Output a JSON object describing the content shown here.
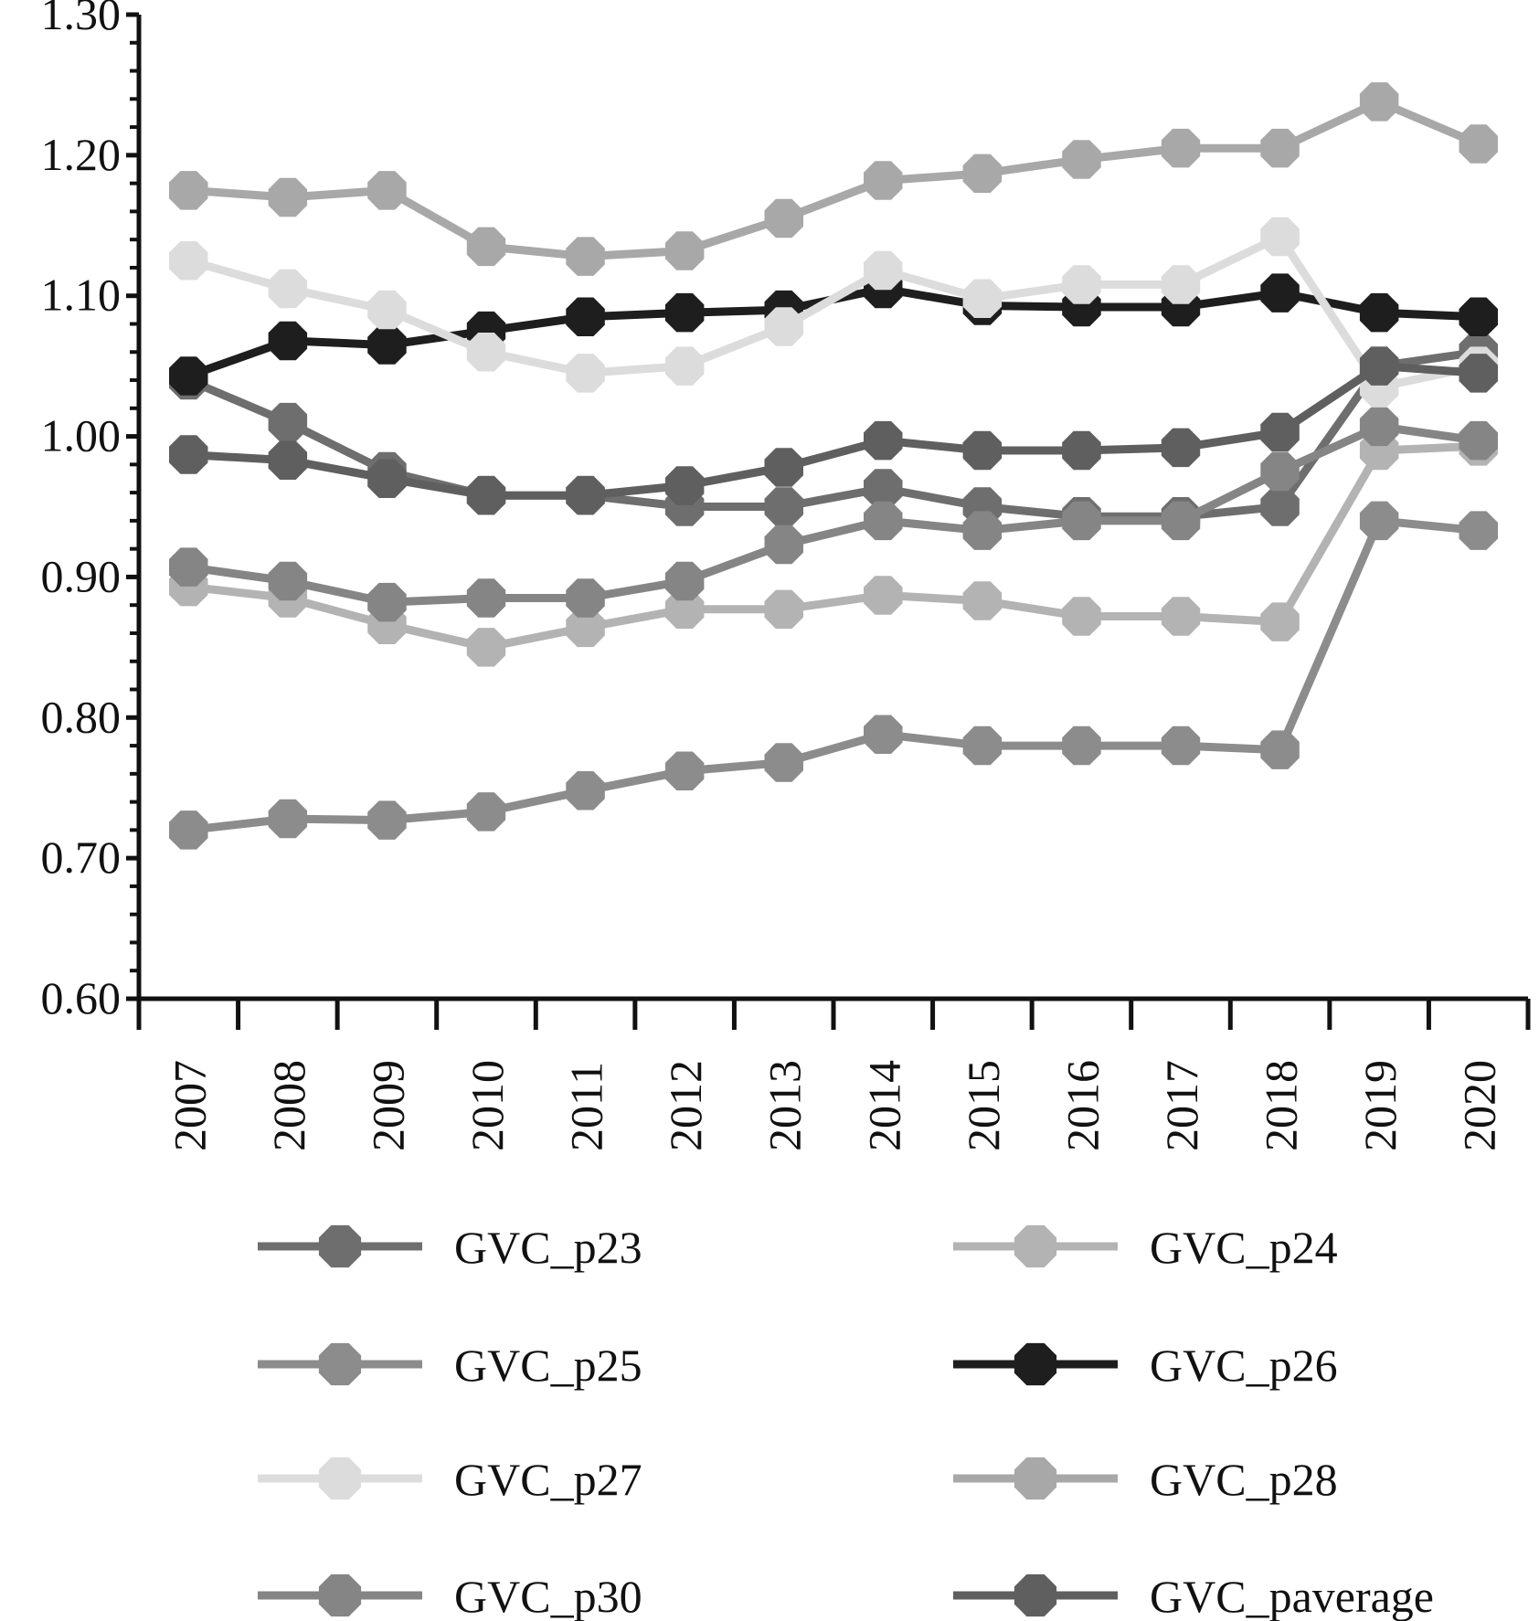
{
  "chart_data": {
    "type": "line",
    "title": "",
    "xlabel": "",
    "ylabel": "",
    "categories": [
      "2007",
      "2008",
      "2009",
      "2010",
      "2011",
      "2012",
      "2013",
      "2014",
      "2015",
      "2016",
      "2017",
      "2018",
      "2019",
      "2020"
    ],
    "ylim": [
      0.6,
      1.3
    ],
    "yticks": [
      "0.60",
      "0.70",
      "0.80",
      "0.90",
      "1.00",
      "1.10",
      "1.20",
      "1.30"
    ],
    "legend_position": "bottom",
    "grid": false,
    "series": [
      {
        "name": "GVC_p23",
        "color": "#6e6e6e",
        "values": [
          1.04,
          1.01,
          0.975,
          0.958,
          0.958,
          0.95,
          0.95,
          0.963,
          0.95,
          0.943,
          0.943,
          0.95,
          1.05,
          1.06
        ]
      },
      {
        "name": "GVC_p24",
        "color": "#b3b3b3",
        "values": [
          0.893,
          0.885,
          0.866,
          0.85,
          0.864,
          0.877,
          0.877,
          0.887,
          0.883,
          0.872,
          0.872,
          0.868,
          0.99,
          0.993
        ]
      },
      {
        "name": "GVC_p25",
        "color": "#8c8c8c",
        "values": [
          0.72,
          0.728,
          0.727,
          0.733,
          0.748,
          0.762,
          0.768,
          0.788,
          0.78,
          0.78,
          0.78,
          0.777,
          0.94,
          0.933
        ]
      },
      {
        "name": "GVC_p26",
        "color": "#1e1e1e",
        "values": [
          1.043,
          1.068,
          1.065,
          1.075,
          1.085,
          1.088,
          1.09,
          1.105,
          1.093,
          1.092,
          1.092,
          1.102,
          1.088,
          1.085
        ]
      },
      {
        "name": "GVC_p27",
        "color": "#dcdcdc",
        "values": [
          1.125,
          1.105,
          1.09,
          1.06,
          1.045,
          1.05,
          1.078,
          1.118,
          1.098,
          1.108,
          1.108,
          1.142,
          1.035,
          1.05
        ]
      },
      {
        "name": "GVC_p28",
        "color": "#a8a8a8",
        "values": [
          1.175,
          1.17,
          1.175,
          1.135,
          1.128,
          1.132,
          1.155,
          1.182,
          1.187,
          1.197,
          1.205,
          1.205,
          1.238,
          1.208
        ]
      },
      {
        "name": "GVC_p30",
        "color": "#858585",
        "values": [
          0.907,
          0.897,
          0.882,
          0.885,
          0.885,
          0.897,
          0.923,
          0.94,
          0.933,
          0.94,
          0.94,
          0.975,
          1.007,
          0.997
        ]
      },
      {
        "name": "GVC_paverage",
        "color": "#5f5f5f",
        "values": [
          0.987,
          0.983,
          0.97,
          0.958,
          0.958,
          0.965,
          0.978,
          0.997,
          0.99,
          0.99,
          0.992,
          1.003,
          1.05,
          1.045
        ]
      }
    ]
  }
}
